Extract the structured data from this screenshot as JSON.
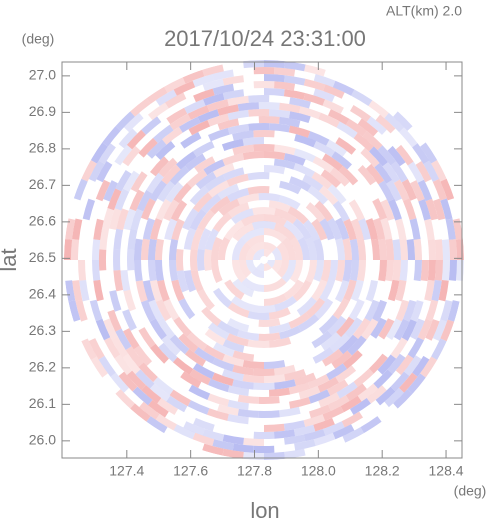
{
  "chart_data": {
    "type": "ppi",
    "title": "2017/10/24 23:31:00",
    "subtitle": "ALT(km) 2.0",
    "x_label": "lon",
    "y_label": "lat",
    "x_unit": "(deg)",
    "y_unit": "(deg)",
    "xlim": [
      127.197,
      128.45
    ],
    "ylim": [
      25.953,
      27.038
    ],
    "xticks": [
      127.4,
      127.6,
      127.8,
      {
        "value": 128.0,
        "label": "128.0"
      },
      128.2,
      128.4
    ],
    "yticks": [
      {
        "value": 26.0,
        "label": "26.0"
      },
      26.1,
      26.2,
      26.3,
      26.4,
      26.5,
      26.6,
      26.7,
      26.8,
      26.9,
      {
        "value": 27.0,
        "label": "27.0"
      }
    ]
  }
}
